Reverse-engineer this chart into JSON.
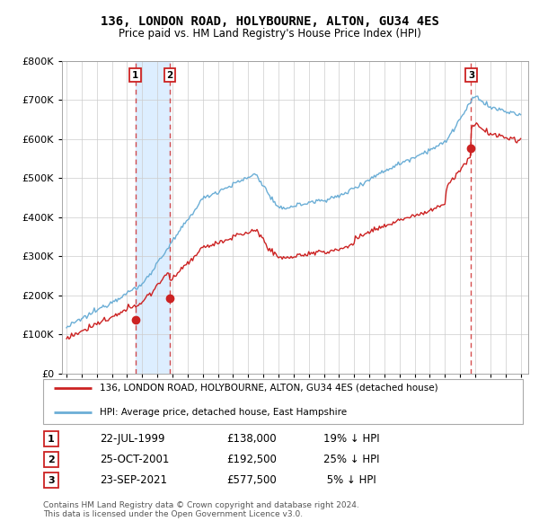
{
  "title": "136, LONDON ROAD, HOLYBOURNE, ALTON, GU34 4ES",
  "subtitle": "Price paid vs. HM Land Registry's House Price Index (HPI)",
  "legend_line1": "136, LONDON ROAD, HOLYBOURNE, ALTON, GU34 4ES (detached house)",
  "legend_line2": "HPI: Average price, detached house, East Hampshire",
  "copyright": "Contains HM Land Registry data © Crown copyright and database right 2024.\nThis data is licensed under the Open Government Licence v3.0.",
  "transactions": [
    {
      "num": 1,
      "date": "22-JUL-1999",
      "price": 138000,
      "pct": "19%",
      "dir": "↓",
      "x_year": 1999.55
    },
    {
      "num": 2,
      "date": "25-OCT-2001",
      "price": 192500,
      "pct": "25%",
      "dir": "↓",
      "x_year": 2001.81
    },
    {
      "num": 3,
      "date": "23-SEP-2021",
      "price": 577500,
      "pct": "5%",
      "dir": "↓",
      "x_year": 2021.73
    }
  ],
  "hpi_color": "#6baed6",
  "price_color": "#cc2222",
  "vline_color": "#cc2222",
  "shade_color": "#ddeeff",
  "ylim": [
    0,
    800000
  ],
  "xlim_start": 1994.7,
  "xlim_end": 2025.5,
  "yticks": [
    0,
    100000,
    200000,
    300000,
    400000,
    500000,
    600000,
    700000,
    800000
  ],
  "xticks": [
    1995,
    1996,
    1997,
    1998,
    1999,
    2000,
    2001,
    2002,
    2003,
    2004,
    2005,
    2006,
    2007,
    2008,
    2009,
    2010,
    2011,
    2012,
    2013,
    2014,
    2015,
    2016,
    2017,
    2018,
    2019,
    2020,
    2021,
    2022,
    2023,
    2024,
    2025
  ],
  "box_border_colors": [
    "#cc2222",
    "#cc2222",
    "#cc2222"
  ],
  "fig_width": 6.0,
  "fig_height": 5.9,
  "dpi": 100
}
